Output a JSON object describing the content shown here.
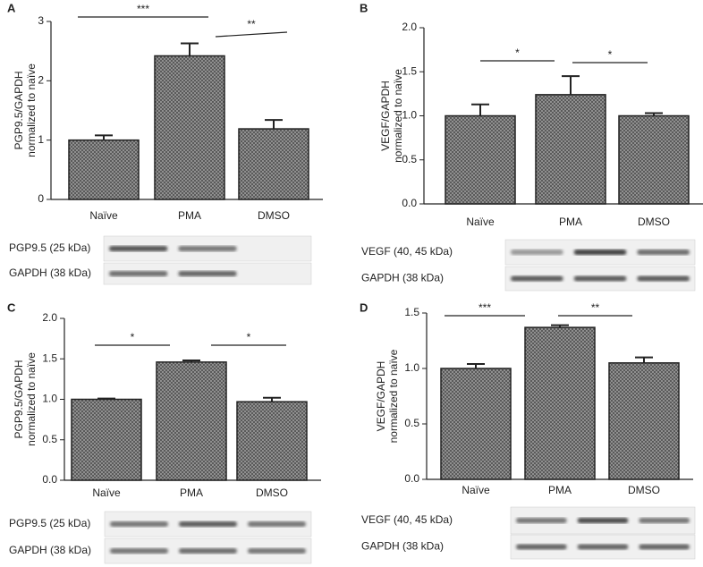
{
  "chart_data": [
    {
      "type": "bar",
      "panel_label": "A",
      "ylabel": [
        "PGP9.5/GAPDH",
        "normalized to naïve"
      ],
      "categories": [
        "Naïve",
        "PMA",
        "DMSO"
      ],
      "values": [
        1.0,
        2.42,
        1.19
      ],
      "errors": [
        0.08,
        0.21,
        0.15
      ],
      "color": "#9a9a9a",
      "ylim": [
        0,
        3
      ],
      "yticks": [
        0,
        1,
        2,
        3
      ],
      "annotations": [
        "***",
        "**"
      ],
      "blot_labels": [
        "PGP9.5 (25 kDa)",
        "GAPDH (38 kDa)"
      ]
    },
    {
      "type": "bar",
      "panel_label": "B",
      "ylabel": [
        "VEGF/GAPDH",
        "normalized to naïve"
      ],
      "categories": [
        "Naïve",
        "PMA",
        "DMSO"
      ],
      "values": [
        1.0,
        1.24,
        1.0
      ],
      "errors": [
        0.13,
        0.21,
        0.03
      ],
      "color": "#9a9a9a",
      "ylim": [
        0,
        2
      ],
      "yticks": [
        {
          "value": 0,
          "label": "0.0"
        },
        0.5,
        {
          "value": 1,
          "label": "1.0"
        },
        1.5,
        {
          "value": 2,
          "label": "2.0"
        }
      ],
      "annotations": [
        "*",
        "*"
      ],
      "blot_labels": [
        "VEGF (40, 45 kDa)",
        "GAPDH (38 kDa)"
      ]
    },
    {
      "type": "bar",
      "panel_label": "C",
      "ylabel": [
        "PGP9.5/GAPDH",
        "normalized to naïve"
      ],
      "categories": [
        "Naïve",
        "PMA",
        "DMSO"
      ],
      "values": [
        1.0,
        1.46,
        0.97
      ],
      "errors": [
        0.01,
        0.02,
        0.05
      ],
      "color": "#9a9a9a",
      "ylim": [
        0,
        2
      ],
      "yticks": [
        {
          "value": 0,
          "label": "0.0"
        },
        0.5,
        {
          "value": 1,
          "label": "1.0"
        },
        1.5,
        {
          "value": 2,
          "label": "2.0"
        }
      ],
      "annotations": [
        "*",
        "*"
      ],
      "blot_labels": [
        "PGP9.5 (25 kDa)",
        "GAPDH (38 kDa)"
      ]
    },
    {
      "type": "bar",
      "panel_label": "D",
      "ylabel": [
        "VEGF/GAPDH",
        "normalized to naïve"
      ],
      "categories": [
        "Naïve",
        "PMA",
        "DMSO"
      ],
      "values": [
        1.0,
        1.37,
        1.05
      ],
      "errors": [
        0.04,
        0.02,
        0.05
      ],
      "color": "#9a9a9a",
      "ylim": [
        0,
        1.5
      ],
      "yticks": [
        {
          "value": 0,
          "label": "0.0"
        },
        0.5,
        {
          "value": 1,
          "label": "1.0"
        },
        1.5
      ],
      "annotations": [
        "***",
        "**"
      ],
      "blot_labels": [
        "VEGF (40, 45 kDa)",
        "GAPDH (38 kDa)"
      ]
    }
  ]
}
